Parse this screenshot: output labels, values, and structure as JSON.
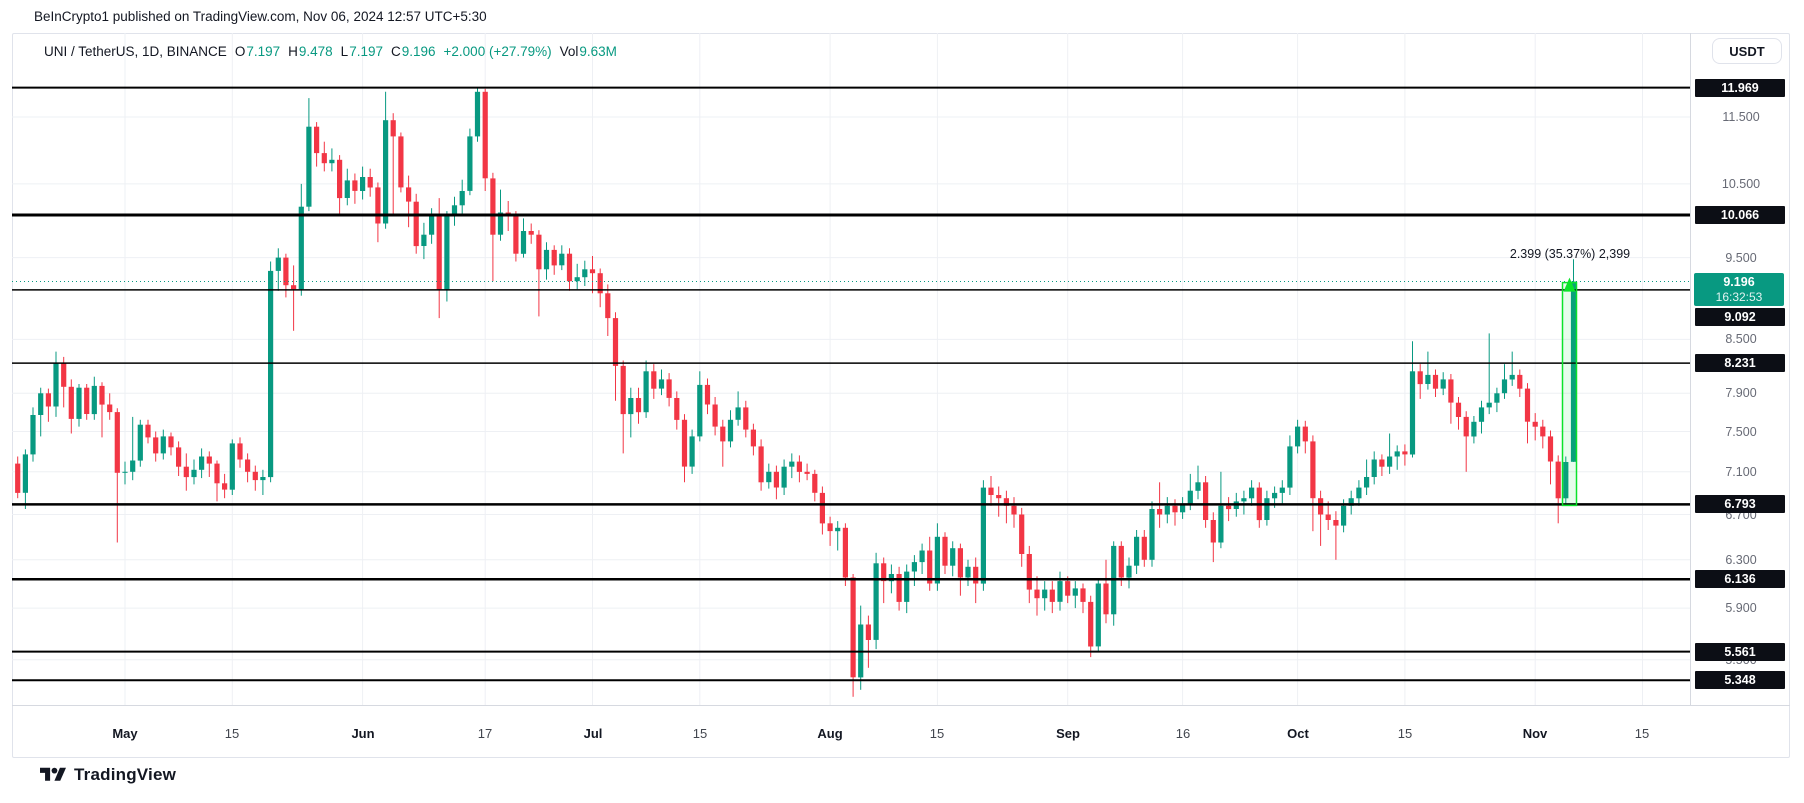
{
  "attribution": "BeInCrypto1 published on TradingView.com, Nov 06, 2024 12:57 UTC+5:30",
  "header": {
    "symbol": "UNI / TetherUS, 1D, BINANCE",
    "o_label": "O",
    "o_value": "7.197",
    "h_label": "H",
    "h_value": "9.478",
    "l_label": "L",
    "l_value": "7.197",
    "c_label": "C",
    "c_value": "9.196",
    "change": "+2.000 (+27.79%)",
    "vol_label": "Vol",
    "vol_value": "9.63M"
  },
  "price_scale": {
    "currency_button": "USDT",
    "ticks": [
      {
        "label": "11.500",
        "price": 11.5
      },
      {
        "label": "10.500",
        "price": 10.5
      },
      {
        "label": "9.500",
        "price": 9.5
      },
      {
        "label": "8.500",
        "price": 8.5
      },
      {
        "label": "7.900",
        "price": 7.9
      },
      {
        "label": "7.500",
        "price": 7.5
      },
      {
        "label": "7.100",
        "price": 7.1
      },
      {
        "label": "6.700",
        "price": 6.7
      },
      {
        "label": "6.300",
        "price": 6.3
      },
      {
        "label": "5.900",
        "price": 5.9
      },
      {
        "label": "5.500",
        "price": 5.5
      }
    ],
    "levels": [
      {
        "label": "11.969",
        "price": 11.969,
        "w": 2
      },
      {
        "label": "10.066",
        "price": 10.066,
        "w": 3
      },
      {
        "label": "9.092",
        "price": 9.092,
        "w": 1.5
      },
      {
        "label": "8.231",
        "price": 8.231,
        "w": 1.5
      },
      {
        "label": "6.793",
        "price": 6.793,
        "w": 2.5
      },
      {
        "label": "6.136",
        "price": 6.136,
        "w": 2.5
      },
      {
        "label": "5.561",
        "price": 5.561,
        "w": 2
      },
      {
        "label": "5.348",
        "price": 5.348,
        "w": 2
      }
    ],
    "current": {
      "price_label": "9.196",
      "countdown": "16:32:53",
      "price": 9.196
    }
  },
  "time_axis": [
    {
      "label": "May",
      "i": 14,
      "major": true
    },
    {
      "label": "15",
      "i": 28
    },
    {
      "label": "Jun",
      "i": 45,
      "major": true
    },
    {
      "label": "17",
      "i": 61
    },
    {
      "label": "Jul",
      "i": 75,
      "major": true
    },
    {
      "label": "15",
      "i": 89
    },
    {
      "label": "Aug",
      "i": 106,
      "major": true
    },
    {
      "label": "15",
      "i": 120
    },
    {
      "label": "Sep",
      "i": 137,
      "major": true
    },
    {
      "label": "16",
      "i": 152
    },
    {
      "label": "Oct",
      "i": 167,
      "major": true
    },
    {
      "label": "15",
      "i": 181
    },
    {
      "label": "Nov",
      "i": 198,
      "major": true
    },
    {
      "label": "15",
      "i": 212
    }
  ],
  "annotation": {
    "text": "2.399 (35.37%) 2,399"
  },
  "footer": {
    "logo_text": "TradingView"
  },
  "colors": {
    "up": "#089981",
    "down": "#f23645",
    "grid": "#eef0f4",
    "level_line": "#000000",
    "current_line": "#089981",
    "measure": "#0be32a",
    "measure_fill": "rgba(16,224,64,0.10)",
    "badge_bg": "#0c0e15",
    "current_badge_bg": "#089981"
  },
  "chart_data": {
    "type": "candlestick",
    "symbol": "UNI/USDT",
    "exchange": "BINANCE",
    "interval": "1D",
    "scale": "log",
    "start_date": "2024-04-17",
    "ylim_prices": [
      5.17,
      12.42
    ],
    "grid": true,
    "current_price": 9.196,
    "horizontal_levels": [
      11.969,
      10.066,
      9.092,
      8.231,
      6.793,
      6.136,
      5.561,
      5.348
    ],
    "measure": {
      "from": 6.783,
      "to": 9.182,
      "at_index": 203,
      "label": "2.399 (35.37%) 2,399"
    },
    "ohlc": [
      [
        7.18,
        7.25,
        6.85,
        6.9
      ],
      [
        6.9,
        7.32,
        6.75,
        7.27
      ],
      [
        7.27,
        7.75,
        7.2,
        7.67
      ],
      [
        7.67,
        7.96,
        7.45,
        7.9
      ],
      [
        7.9,
        7.95,
        7.6,
        7.76
      ],
      [
        7.76,
        8.36,
        7.65,
        8.23
      ],
      [
        8.23,
        8.3,
        7.75,
        7.97
      ],
      [
        7.97,
        8.05,
        7.48,
        7.63
      ],
      [
        7.63,
        8.0,
        7.55,
        7.96
      ],
      [
        7.96,
        8.0,
        7.62,
        7.68
      ],
      [
        7.68,
        8.08,
        7.62,
        7.98
      ],
      [
        7.98,
        8.02,
        7.44,
        7.78
      ],
      [
        7.78,
        7.9,
        7.62,
        7.7
      ],
      [
        7.7,
        7.74,
        6.45,
        7.09
      ],
      [
        7.09,
        7.2,
        6.98,
        7.1
      ],
      [
        7.1,
        7.65,
        7.02,
        7.21
      ],
      [
        7.21,
        7.62,
        7.15,
        7.57
      ],
      [
        7.57,
        7.62,
        7.38,
        7.44
      ],
      [
        7.44,
        7.5,
        7.2,
        7.28
      ],
      [
        7.28,
        7.52,
        7.22,
        7.45
      ],
      [
        7.45,
        7.49,
        7.26,
        7.34
      ],
      [
        7.34,
        7.4,
        7.06,
        7.15
      ],
      [
        7.15,
        7.28,
        6.92,
        7.05
      ],
      [
        7.05,
        7.22,
        6.98,
        7.12
      ],
      [
        7.12,
        7.33,
        7.04,
        7.25
      ],
      [
        7.25,
        7.3,
        7.05,
        7.18
      ],
      [
        7.18,
        7.21,
        6.82,
        6.99
      ],
      [
        6.99,
        7.08,
        6.85,
        6.93
      ],
      [
        6.93,
        7.42,
        6.88,
        7.38
      ],
      [
        7.38,
        7.44,
        7.14,
        7.22
      ],
      [
        7.22,
        7.28,
        7.0,
        7.1
      ],
      [
        7.1,
        7.16,
        6.92,
        7.02
      ],
      [
        7.02,
        7.12,
        6.88,
        7.05
      ],
      [
        7.05,
        9.45,
        7.0,
        9.33
      ],
      [
        9.33,
        9.62,
        9.08,
        9.5
      ],
      [
        9.5,
        9.55,
        9.0,
        9.15
      ],
      [
        9.15,
        9.4,
        8.6,
        9.1
      ],
      [
        9.1,
        10.5,
        9.02,
        10.18
      ],
      [
        10.18,
        11.8,
        10.12,
        11.35
      ],
      [
        11.35,
        11.42,
        10.75,
        10.95
      ],
      [
        10.95,
        11.12,
        10.68,
        10.8
      ],
      [
        10.8,
        11.02,
        10.68,
        10.85
      ],
      [
        10.85,
        10.92,
        10.05,
        10.3
      ],
      [
        10.3,
        10.72,
        10.2,
        10.55
      ],
      [
        10.55,
        10.65,
        10.22,
        10.4
      ],
      [
        10.4,
        10.75,
        10.28,
        10.6
      ],
      [
        10.6,
        10.72,
        10.32,
        10.45
      ],
      [
        10.45,
        10.52,
        9.7,
        9.95
      ],
      [
        9.95,
        11.9,
        9.88,
        11.45
      ],
      [
        11.45,
        11.56,
        10.08,
        11.2
      ],
      [
        11.2,
        11.26,
        10.38,
        10.45
      ],
      [
        10.45,
        10.62,
        9.9,
        10.25
      ],
      [
        10.25,
        10.36,
        9.55,
        9.65
      ],
      [
        9.65,
        9.96,
        9.48,
        9.8
      ],
      [
        9.8,
        10.16,
        9.68,
        10.05
      ],
      [
        10.05,
        10.3,
        8.75,
        9.1
      ],
      [
        9.1,
        10.12,
        8.95,
        10.05
      ],
      [
        10.05,
        10.32,
        9.92,
        10.2
      ],
      [
        10.2,
        10.56,
        10.08,
        10.4
      ],
      [
        10.4,
        11.32,
        10.34,
        11.2
      ],
      [
        11.2,
        11.969,
        11.12,
        11.9
      ],
      [
        11.9,
        11.95,
        10.4,
        10.58
      ],
      [
        10.58,
        10.66,
        9.2,
        9.8
      ],
      [
        9.8,
        10.42,
        9.72,
        10.1
      ],
      [
        10.1,
        10.26,
        9.85,
        10.05
      ],
      [
        10.05,
        10.12,
        9.45,
        9.55
      ],
      [
        9.55,
        10.02,
        9.5,
        9.85
      ],
      [
        9.85,
        9.95,
        9.68,
        9.8
      ],
      [
        9.8,
        9.86,
        8.77,
        9.35
      ],
      [
        9.35,
        9.7,
        9.22,
        9.6
      ],
      [
        9.6,
        9.66,
        9.28,
        9.4
      ],
      [
        9.4,
        9.66,
        9.34,
        9.55
      ],
      [
        9.55,
        9.62,
        9.08,
        9.2
      ],
      [
        9.2,
        9.42,
        9.1,
        9.25
      ],
      [
        9.25,
        9.46,
        9.14,
        9.35
      ],
      [
        9.35,
        9.52,
        9.05,
        9.3
      ],
      [
        9.3,
        9.36,
        8.88,
        9.05
      ],
      [
        9.05,
        9.16,
        8.54,
        8.75
      ],
      [
        8.75,
        8.82,
        7.82,
        8.2
      ],
      [
        8.2,
        8.26,
        7.28,
        7.68
      ],
      [
        7.68,
        7.96,
        7.44,
        7.85
      ],
      [
        7.85,
        7.96,
        7.58,
        7.7
      ],
      [
        7.7,
        8.26,
        7.64,
        8.14
      ],
      [
        8.14,
        8.22,
        7.84,
        7.95
      ],
      [
        7.95,
        8.16,
        7.88,
        8.05
      ],
      [
        8.05,
        8.12,
        7.76,
        7.85
      ],
      [
        7.85,
        7.92,
        7.52,
        7.62
      ],
      [
        7.62,
        7.68,
        7.0,
        7.15
      ],
      [
        7.15,
        7.52,
        7.08,
        7.45
      ],
      [
        7.45,
        8.14,
        7.4,
        7.99
      ],
      [
        7.99,
        8.06,
        7.68,
        7.78
      ],
      [
        7.78,
        7.86,
        7.46,
        7.55
      ],
      [
        7.55,
        7.62,
        7.15,
        7.4
      ],
      [
        7.4,
        7.72,
        7.34,
        7.62
      ],
      [
        7.62,
        7.92,
        7.56,
        7.75
      ],
      [
        7.75,
        7.82,
        7.44,
        7.52
      ],
      [
        7.52,
        7.58,
        7.26,
        7.35
      ],
      [
        7.35,
        7.42,
        6.92,
        7.0
      ],
      [
        7.0,
        7.18,
        6.94,
        7.1
      ],
      [
        7.1,
        7.16,
        6.84,
        6.95
      ],
      [
        6.95,
        7.22,
        6.88,
        7.15
      ],
      [
        7.15,
        7.28,
        7.04,
        7.2
      ],
      [
        7.2,
        7.26,
        7.0,
        7.1
      ],
      [
        7.1,
        7.18,
        7.02,
        7.08
      ],
      [
        7.08,
        7.12,
        6.82,
        6.9
      ],
      [
        6.9,
        6.96,
        6.52,
        6.62
      ],
      [
        6.62,
        6.68,
        6.42,
        6.55
      ],
      [
        6.55,
        6.64,
        6.38,
        6.58
      ],
      [
        6.58,
        6.62,
        6.08,
        6.15
      ],
      [
        6.15,
        6.18,
        5.23,
        5.37
      ],
      [
        5.37,
        5.92,
        5.28,
        5.77
      ],
      [
        5.77,
        5.84,
        5.44,
        5.65
      ],
      [
        5.65,
        6.36,
        5.58,
        6.27
      ],
      [
        6.27,
        6.32,
        5.94,
        6.12
      ],
      [
        6.12,
        6.26,
        6.02,
        6.18
      ],
      [
        6.18,
        6.24,
        5.88,
        5.95
      ],
      [
        5.95,
        6.26,
        5.86,
        6.2
      ],
      [
        6.2,
        6.34,
        6.08,
        6.28
      ],
      [
        6.28,
        6.44,
        6.18,
        6.38
      ],
      [
        6.38,
        6.5,
        6.04,
        6.1
      ],
      [
        6.1,
        6.62,
        6.04,
        6.5
      ],
      [
        6.5,
        6.54,
        6.18,
        6.25
      ],
      [
        6.25,
        6.46,
        6.16,
        6.4
      ],
      [
        6.4,
        6.44,
        6.0,
        6.15
      ],
      [
        6.15,
        6.3,
        6.08,
        6.24
      ],
      [
        6.24,
        6.32,
        5.94,
        6.1
      ],
      [
        6.1,
        7.02,
        6.04,
        6.95
      ],
      [
        6.95,
        7.06,
        6.78,
        6.88
      ],
      [
        6.88,
        6.96,
        6.68,
        6.85
      ],
      [
        6.85,
        6.92,
        6.62,
        6.78
      ],
      [
        6.78,
        6.86,
        6.58,
        6.7
      ],
      [
        6.7,
        6.76,
        6.24,
        6.35
      ],
      [
        6.35,
        6.42,
        5.94,
        6.05
      ],
      [
        6.05,
        6.16,
        5.84,
        5.98
      ],
      [
        5.98,
        6.12,
        5.88,
        6.05
      ],
      [
        6.05,
        6.12,
        5.86,
        5.95
      ],
      [
        5.95,
        6.2,
        5.88,
        6.12
      ],
      [
        6.12,
        6.16,
        5.94,
        6.0
      ],
      [
        6.0,
        6.12,
        5.9,
        6.06
      ],
      [
        6.06,
        6.1,
        5.86,
        5.95
      ],
      [
        5.95,
        6.0,
        5.52,
        5.6
      ],
      [
        5.6,
        6.14,
        5.56,
        6.1
      ],
      [
        6.1,
        6.3,
        5.78,
        5.85
      ],
      [
        5.85,
        6.46,
        5.76,
        6.42
      ],
      [
        6.42,
        6.46,
        6.08,
        6.15
      ],
      [
        6.15,
        6.32,
        6.06,
        6.25
      ],
      [
        6.25,
        6.56,
        6.18,
        6.5
      ],
      [
        6.5,
        6.56,
        6.24,
        6.3
      ],
      [
        6.3,
        6.82,
        6.24,
        6.75
      ],
      [
        6.75,
        7.0,
        6.58,
        6.7
      ],
      [
        6.7,
        6.86,
        6.62,
        6.78
      ],
      [
        6.78,
        6.84,
        6.6,
        6.72
      ],
      [
        6.72,
        6.86,
        6.66,
        6.8
      ],
      [
        6.8,
        7.08,
        6.74,
        6.92
      ],
      [
        6.92,
        7.16,
        6.84,
        7.0
      ],
      [
        7.0,
        7.06,
        6.58,
        6.65
      ],
      [
        6.65,
        6.72,
        6.28,
        6.45
      ],
      [
        6.45,
        7.1,
        6.4,
        6.78
      ],
      [
        6.78,
        6.86,
        6.64,
        6.75
      ],
      [
        6.75,
        6.9,
        6.68,
        6.82
      ],
      [
        6.82,
        6.92,
        6.7,
        6.85
      ],
      [
        6.85,
        7.02,
        6.78,
        6.95
      ],
      [
        6.95,
        7.0,
        6.58,
        6.65
      ],
      [
        6.65,
        6.92,
        6.6,
        6.85
      ],
      [
        6.85,
        6.96,
        6.76,
        6.9
      ],
      [
        6.9,
        7.02,
        6.8,
        6.95
      ],
      [
        6.95,
        7.46,
        6.88,
        7.35
      ],
      [
        7.35,
        7.62,
        7.28,
        7.55
      ],
      [
        7.55,
        7.61,
        7.28,
        7.4
      ],
      [
        7.4,
        7.46,
        6.55,
        6.85
      ],
      [
        6.85,
        6.92,
        6.42,
        6.7
      ],
      [
        6.7,
        6.82,
        6.56,
        6.65
      ],
      [
        6.65,
        6.73,
        6.3,
        6.6
      ],
      [
        6.6,
        6.84,
        6.54,
        6.78
      ],
      [
        6.78,
        6.92,
        6.7,
        6.85
      ],
      [
        6.85,
        7.02,
        6.78,
        6.95
      ],
      [
        6.95,
        7.22,
        6.88,
        7.05
      ],
      [
        7.05,
        7.3,
        6.98,
        7.22
      ],
      [
        7.22,
        7.27,
        7.06,
        7.15
      ],
      [
        7.15,
        7.48,
        7.08,
        7.25
      ],
      [
        7.25,
        7.36,
        7.12,
        7.3
      ],
      [
        7.3,
        7.37,
        7.16,
        7.27
      ],
      [
        7.27,
        8.48,
        7.24,
        8.14
      ],
      [
        8.14,
        8.22,
        7.84,
        8.0
      ],
      [
        8.0,
        8.36,
        7.94,
        8.1
      ],
      [
        8.1,
        8.16,
        7.86,
        7.95
      ],
      [
        7.95,
        8.13,
        7.88,
        8.05
      ],
      [
        8.05,
        8.11,
        7.58,
        7.8
      ],
      [
        7.8,
        7.86,
        7.52,
        7.65
      ],
      [
        7.65,
        7.71,
        7.1,
        7.45
      ],
      [
        7.45,
        7.66,
        7.38,
        7.6
      ],
      [
        7.6,
        7.82,
        7.48,
        7.75
      ],
      [
        7.75,
        8.57,
        7.68,
        7.8
      ],
      [
        7.8,
        7.96,
        7.7,
        7.9
      ],
      [
        7.9,
        8.22,
        7.84,
        8.05
      ],
      [
        8.05,
        8.36,
        7.98,
        8.1
      ],
      [
        8.1,
        8.16,
        7.86,
        7.95
      ],
      [
        7.95,
        8.01,
        7.38,
        7.6
      ],
      [
        7.6,
        7.69,
        7.41,
        7.55
      ],
      [
        7.55,
        7.62,
        7.33,
        7.45
      ],
      [
        7.45,
        7.51,
        6.98,
        7.2
      ],
      [
        7.2,
        7.26,
        6.62,
        6.85
      ],
      [
        6.85,
        7.25,
        6.78,
        7.196
      ],
      [
        7.197,
        9.478,
        7.197,
        9.196
      ]
    ]
  }
}
